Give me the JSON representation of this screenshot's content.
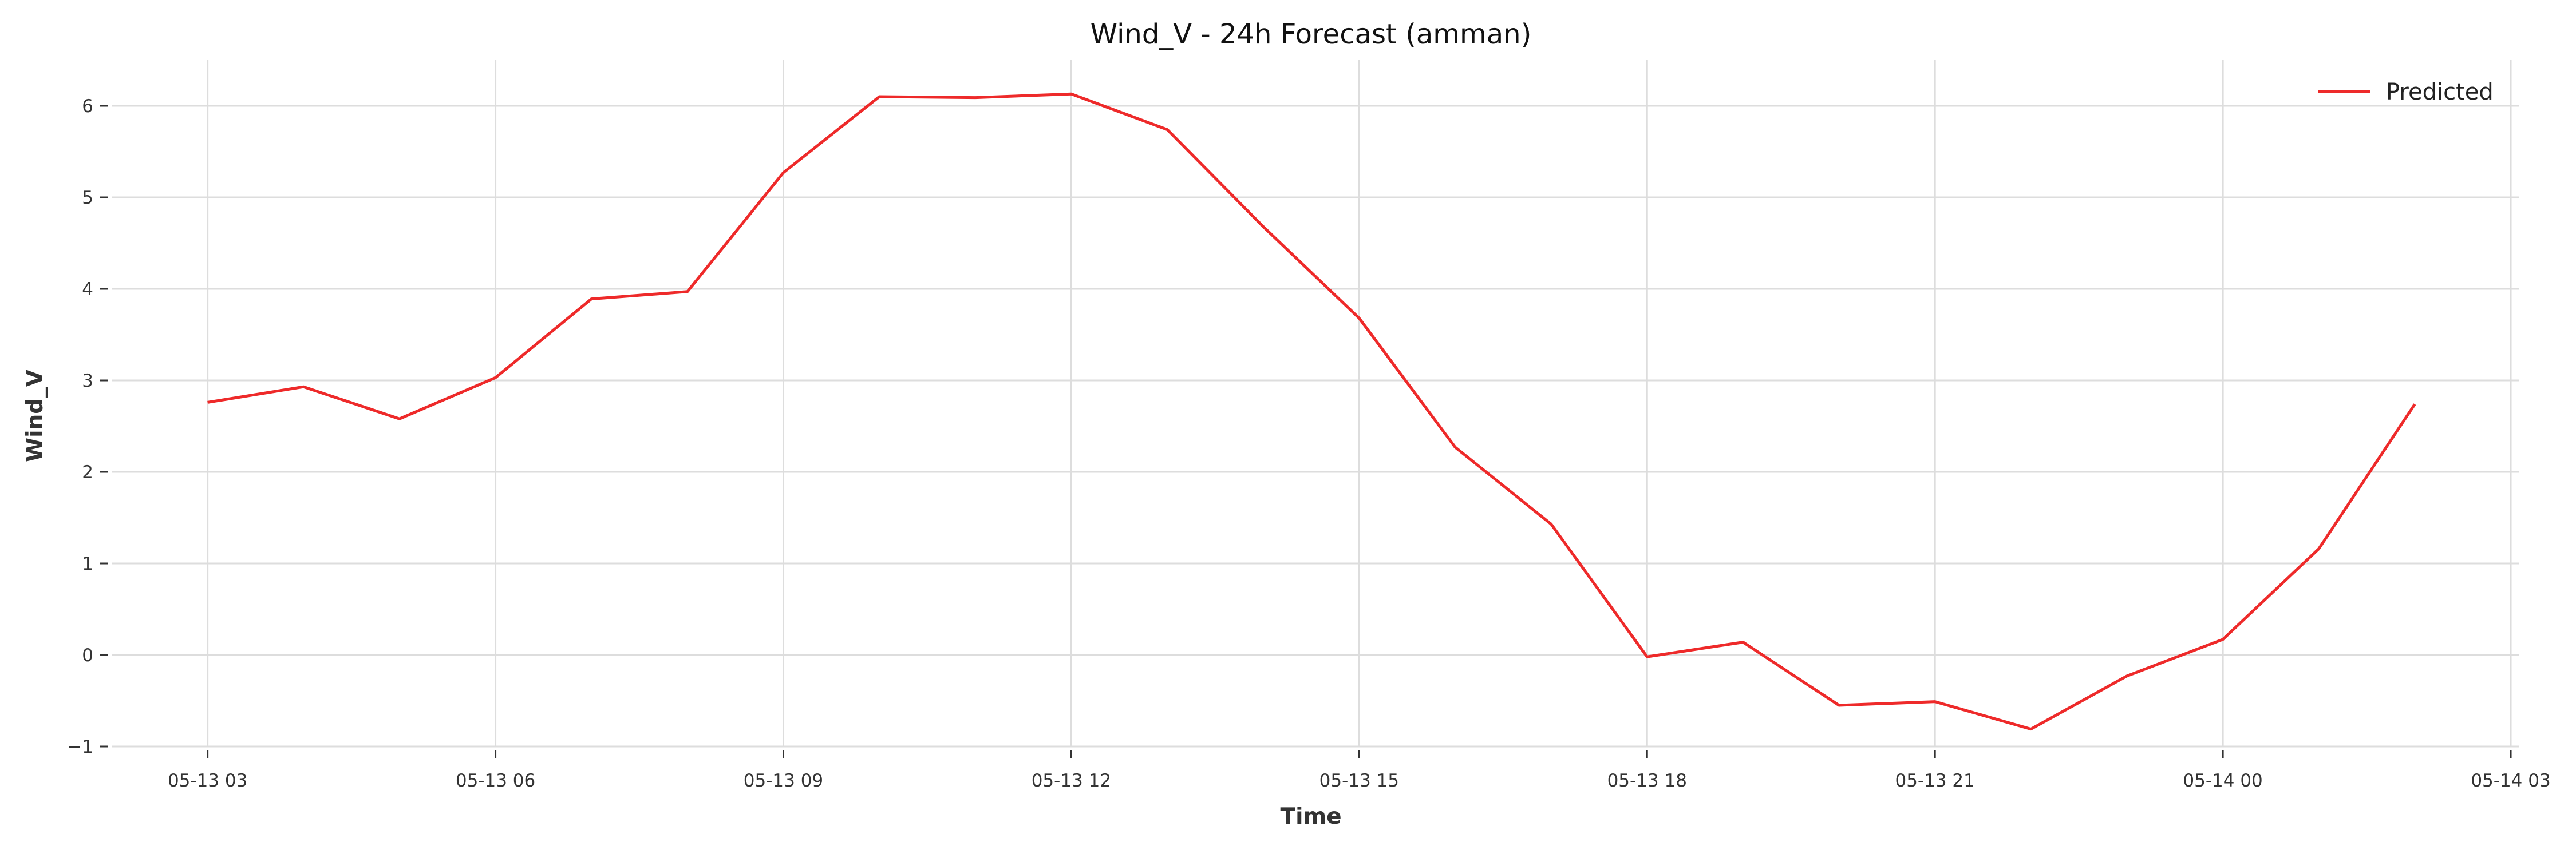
{
  "chart_data": {
    "type": "line",
    "title": "Wind_V - 24h Forecast (amman)",
    "xlabel": "Time",
    "ylabel": "Wind_V",
    "x_ticks": [
      "05-13 03",
      "05-13 06",
      "05-13 09",
      "05-13 12",
      "05-13 15",
      "05-13 18",
      "05-13 21",
      "05-14 00",
      "05-14 03"
    ],
    "y_ticks": [
      "−1",
      "0",
      "1",
      "2",
      "3",
      "4",
      "5",
      "6"
    ],
    "ylim": [
      -1,
      6.5
    ],
    "xlim": [
      "05-13 02:00",
      "05-14 03:05"
    ],
    "grid": true,
    "legend_position": "top-right",
    "colors": {
      "predicted": "#ee2a2a",
      "grid": "#dddddd"
    },
    "series": [
      {
        "name": "Predicted",
        "x": [
          "05-13 03:00",
          "05-13 04:00",
          "05-13 05:00",
          "05-13 06:00",
          "05-13 07:00",
          "05-13 08:00",
          "05-13 09:00",
          "05-13 10:00",
          "05-13 11:00",
          "05-13 12:00",
          "05-13 13:00",
          "05-13 14:00",
          "05-13 15:00",
          "05-13 16:00",
          "05-13 17:00",
          "05-13 18:00",
          "05-13 19:00",
          "05-13 20:00",
          "05-13 21:00",
          "05-13 22:00",
          "05-13 23:00",
          "05-14 00:00",
          "05-14 01:00",
          "05-14 02:00"
        ],
        "values": [
          2.76,
          2.93,
          2.58,
          3.03,
          3.89,
          3.97,
          5.27,
          6.1,
          6.09,
          6.13,
          5.74,
          4.68,
          3.68,
          2.27,
          1.43,
          -0.02,
          0.14,
          -0.55,
          -0.51,
          -0.81,
          -0.23,
          0.17,
          1.16,
          2.74
        ]
      }
    ]
  }
}
